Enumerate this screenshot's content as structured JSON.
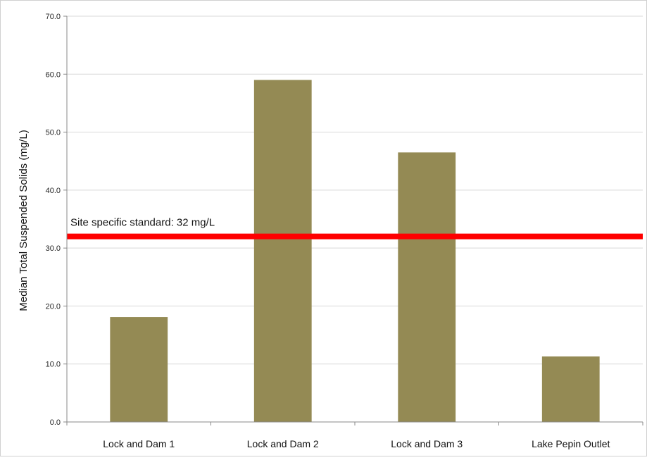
{
  "chart_data": {
    "type": "bar",
    "categories": [
      "Lock and Dam 1",
      "Lock and Dam 2",
      "Lock and Dam 3",
      "Lake Pepin Outlet"
    ],
    "values": [
      18.1,
      59.0,
      46.5,
      11.3
    ],
    "title": "",
    "xlabel": "",
    "ylabel": "Median Total Suspended Solids (mg/L)",
    "ylim": [
      0,
      70
    ],
    "yticks": [
      "0.0",
      "10.0",
      "20.0",
      "30.0",
      "40.0",
      "50.0",
      "60.0",
      "70.0"
    ],
    "grid": true,
    "legend": "none",
    "reference_line": {
      "value": 32,
      "label": "Site specific standard: 32 mg/L",
      "color": "#ff0000"
    },
    "bar_color": "#948a54",
    "gridline_color": "#d9d9d9"
  }
}
